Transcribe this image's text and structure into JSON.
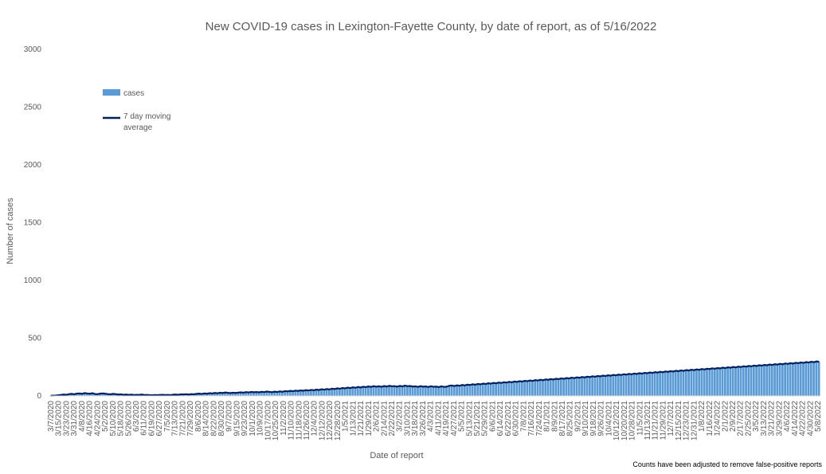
{
  "chart_data": {
    "type": "bar",
    "title": "New COVID-19 cases in Lexington-Fayette County, by date of report, as of 5/16/2022",
    "xlabel": "Date of report",
    "ylabel": "Number of cases",
    "ylim": [
      0,
      3000
    ],
    "yticks": [
      0,
      500,
      1000,
      1500,
      2000,
      2500,
      3000
    ],
    "x_start": "3/7/2020",
    "x_end": "5/16/2022",
    "x_tick_labels": [
      "3/7/2020",
      "3/15/2020",
      "3/23/2020",
      "3/31/2020",
      "4/8/2020",
      "4/16/2020",
      "4/24/2020",
      "5/2/2020",
      "5/10/2020",
      "5/18/2020",
      "5/26/2020",
      "6/3/2020",
      "6/11/2020",
      "6/19/2020",
      "6/27/2020",
      "7/5/2020",
      "7/13/2020",
      "7/21/2020",
      "7/29/2020",
      "8/6/2020",
      "8/14/2020",
      "8/22/2020",
      "8/30/2020",
      "9/7/2020",
      "9/15/2020",
      "9/23/2020",
      "10/1/2020",
      "10/9/2020",
      "10/17/2020",
      "10/25/2020",
      "11/2/2020",
      "11/10/2020",
      "11/18/2020",
      "11/26/2020",
      "12/4/2020",
      "12/12/2020",
      "12/20/2020",
      "12/28/2020",
      "1/5/2021",
      "1/13/2021",
      "1/21/2021",
      "1/29/2021",
      "2/6/2021",
      "2/14/2021",
      "2/22/2021",
      "3/2/2021",
      "3/10/2021",
      "3/18/2021",
      "3/26/2021",
      "4/3/2021",
      "4/11/2021",
      "4/19/2021",
      "4/27/2021",
      "5/5/2021",
      "5/13/2021",
      "5/21/2021",
      "5/29/2021",
      "6/6/2021",
      "6/14/2021",
      "6/22/2021",
      "6/30/2021",
      "7/8/2021",
      "7/16/2021",
      "7/24/2021",
      "8/1/2021",
      "8/9/2021",
      "8/17/2021",
      "8/25/2021",
      "9/2/2021",
      "9/10/2021",
      "9/18/2021",
      "9/26/2021",
      "10/4/2021",
      "10/12/2021",
      "10/20/2021",
      "10/28/2021",
      "11/5/2021",
      "11/13/2021",
      "11/21/2021",
      "11/29/2021",
      "12/7/2021",
      "12/15/2021",
      "12/23/2021",
      "12/31/2021",
      "1/8/2022",
      "1/16/2022",
      "1/24/2022",
      "2/1/2022",
      "2/9/2022",
      "2/17/2022",
      "2/25/2022",
      "3/5/2022",
      "3/13/2022",
      "3/21/2022",
      "3/29/2022",
      "4/6/2022",
      "4/14/2022",
      "4/22/2022",
      "4/30/2022",
      "5/8/2022"
    ],
    "series": [
      {
        "name": "cases",
        "color": "#5b9bd5",
        "values": [
          2,
          3,
          4,
          6,
          9,
          12,
          10,
          15,
          18,
          14,
          20,
          22,
          18,
          25,
          21,
          19,
          24,
          17,
          15,
          20,
          22,
          19,
          16,
          14,
          18,
          15,
          12,
          14,
          10,
          12,
          9,
          11,
          8,
          10,
          9,
          12,
          8,
          9,
          7,
          6,
          8,
          7,
          9,
          10,
          8,
          9,
          7,
          11,
          12,
          10,
          14,
          13,
          15,
          12,
          16,
          14,
          18,
          20,
          17,
          22,
          19,
          24,
          21,
          26,
          23,
          28,
          25,
          30,
          27,
          24,
          28,
          26,
          29,
          31,
          28,
          33,
          30,
          35,
          32,
          34,
          31,
          36,
          33,
          38,
          35,
          32,
          37,
          34,
          39,
          36,
          42,
          39,
          44,
          41,
          46,
          43,
          48,
          45,
          50,
          47,
          52,
          49,
          55,
          51,
          58,
          54,
          60,
          56,
          63,
          59,
          66,
          62,
          69,
          65,
          72,
          68,
          75,
          70,
          78,
          73,
          80,
          76,
          82,
          78,
          85,
          80,
          84,
          79,
          86,
          81,
          88,
          83,
          85,
          80,
          87,
          82,
          89,
          84,
          86,
          81,
          83,
          78,
          85,
          80,
          82,
          77,
          84,
          79,
          81,
          76,
          83,
          78,
          80,
          88,
          90,
          86,
          92,
          88,
          95,
          91,
          98,
          94,
          101,
          97,
          104,
          100,
          107,
          103,
          110,
          106,
          113,
          109,
          116,
          112,
          119,
          115,
          122,
          118,
          125,
          121,
          128,
          124,
          131,
          127,
          134,
          130,
          137,
          133,
          140,
          136,
          143,
          139,
          146,
          142,
          149,
          145,
          152,
          148,
          155,
          151,
          158,
          154,
          161,
          157,
          164,
          160,
          167,
          163,
          170,
          166,
          173,
          169,
          176,
          172,
          179,
          175,
          182,
          178,
          185,
          181,
          188,
          184,
          191,
          187,
          194,
          190,
          197,
          193,
          200,
          196,
          203,
          199,
          206,
          202,
          209,
          205,
          212,
          208,
          215,
          211,
          218,
          214,
          221,
          217,
          224,
          220,
          227,
          223,
          230,
          226,
          233,
          229,
          236,
          232,
          239,
          235,
          242,
          238,
          245,
          241,
          248,
          244,
          251,
          247,
          254,
          250,
          257,
          253,
          260,
          256,
          263,
          259,
          266,
          262,
          269,
          265,
          272,
          268,
          275,
          271,
          278,
          274,
          281,
          277,
          284,
          280,
          287,
          283,
          290,
          286,
          293,
          289,
          296,
          292,
          299,
          295
        ]
      },
      {
        "name": "7 day moving average",
        "color": "#002060",
        "values": [
          2,
          3,
          4,
          6,
          9,
          12,
          10,
          15,
          18,
          14,
          20,
          22,
          18,
          25,
          21,
          19,
          24,
          17,
          15,
          20,
          22,
          19,
          16,
          14,
          18,
          15,
          12,
          14,
          10,
          12,
          9,
          11,
          8,
          10,
          9,
          12,
          8,
          9,
          7,
          6,
          8,
          7,
          9,
          10,
          8,
          9,
          7,
          11,
          12,
          10,
          14,
          13,
          15,
          12,
          16,
          14,
          18,
          20,
          17,
          22,
          19,
          24,
          21,
          26,
          23,
          28,
          25,
          30,
          27,
          24,
          28,
          26,
          29,
          31,
          28,
          33,
          30,
          35,
          32,
          34,
          31,
          36,
          33,
          38,
          35,
          32,
          37,
          34,
          39,
          36,
          42,
          39,
          44,
          41,
          46,
          43,
          48,
          45,
          50,
          47,
          52,
          49,
          55,
          51,
          58,
          54,
          60,
          56,
          63,
          59,
          66,
          62,
          69,
          65,
          72,
          68,
          75,
          70,
          78,
          73,
          80,
          76,
          82,
          78,
          85,
          80,
          84,
          79,
          86,
          81,
          88,
          83,
          85,
          80,
          87,
          82,
          89,
          84,
          86,
          81,
          83,
          78,
          85,
          80,
          82,
          77,
          84,
          79,
          81,
          76,
          83,
          78,
          80,
          88,
          90,
          86,
          92,
          88,
          95,
          91,
          98,
          94,
          101,
          97,
          104,
          100,
          107,
          103,
          110,
          106,
          113,
          109,
          116,
          112,
          119,
          115,
          122,
          118,
          125,
          121,
          128,
          124,
          131,
          127,
          134,
          130,
          137,
          133,
          140,
          136,
          143,
          139,
          146,
          142,
          149,
          145,
          152,
          148,
          155,
          151,
          158,
          154,
          161,
          157,
          164,
          160,
          167,
          163,
          170,
          166,
          173,
          169,
          176,
          172,
          179,
          175,
          182,
          178,
          185,
          181,
          188,
          184,
          191,
          187,
          194,
          190,
          197,
          193,
          200,
          196,
          203,
          199,
          206,
          202,
          209,
          205,
          212,
          208,
          215,
          211,
          218,
          214,
          221,
          217,
          224,
          220,
          227,
          223,
          230,
          226,
          233,
          229,
          236,
          232,
          239,
          235,
          242,
          238,
          245,
          241,
          248,
          244,
          251,
          247,
          254,
          250,
          257,
          253,
          260,
          256,
          263,
          259,
          266,
          262,
          269,
          265,
          272,
          268,
          275,
          271,
          278,
          274,
          281,
          277,
          284,
          280,
          287,
          283,
          290,
          286,
          293,
          289,
          296,
          292,
          299,
          295
        ]
      }
    ],
    "legend": {
      "position": "top-left",
      "entries": [
        "cases",
        "7 day moving average"
      ]
    },
    "grid": false,
    "footnote": "Counts have been adjusted to remove false-positive reports"
  }
}
